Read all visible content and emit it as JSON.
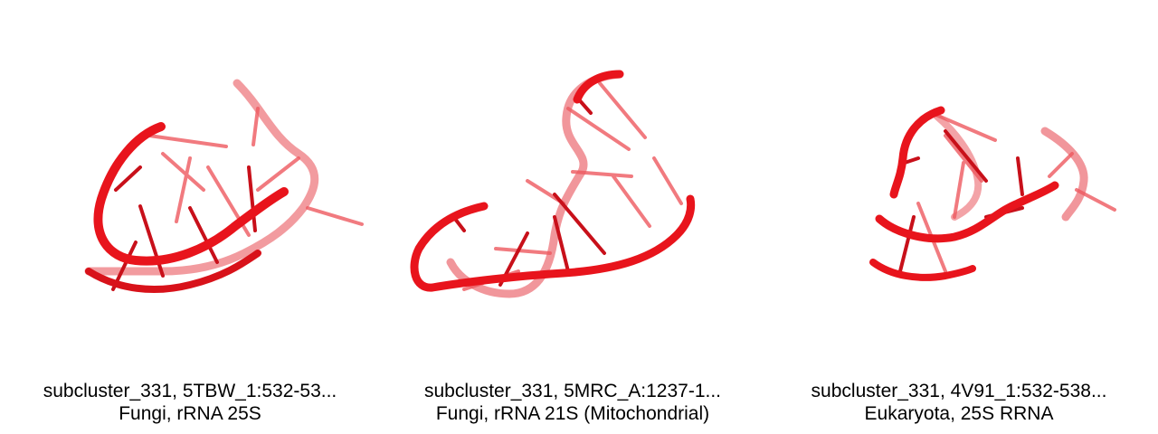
{
  "structure_color": "#e8141c",
  "panels": [
    {
      "icon": "rna-structure-icon",
      "title": "subcluster_331, 5TBW_1:532-53...",
      "subtitle": "Fungi, rRNA 25S"
    },
    {
      "icon": "rna-structure-icon",
      "title": "subcluster_331, 5MRC_A:1237-1...",
      "subtitle": "Fungi, rRNA 21S (Mitochondrial)"
    },
    {
      "icon": "rna-structure-icon",
      "title": "subcluster_331, 4V91_1:532-538...",
      "subtitle": "Eukaryota, 25S RRNA"
    }
  ]
}
